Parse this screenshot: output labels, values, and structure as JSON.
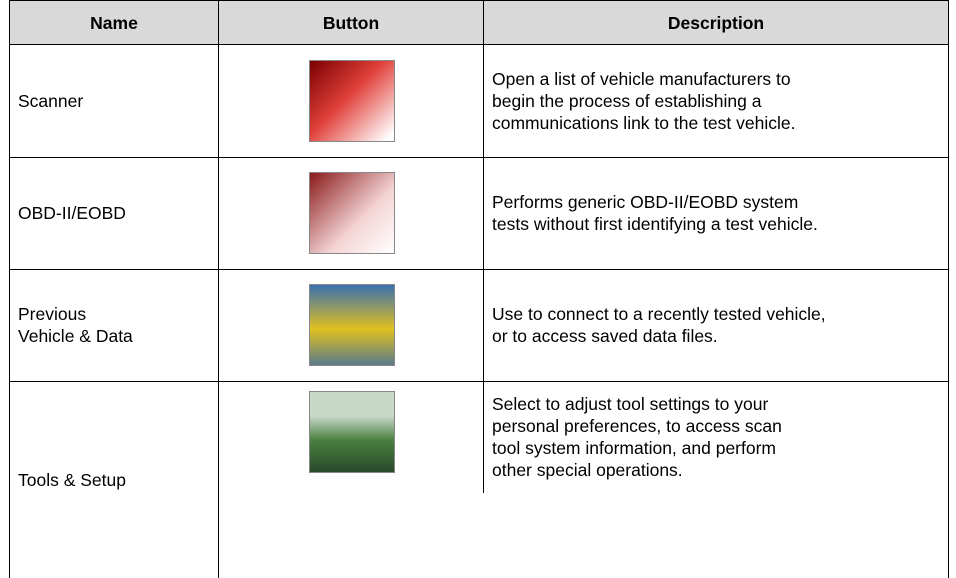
{
  "table": {
    "header": [
      "Name",
      "Button",
      "Description"
    ],
    "rows": [
      {
        "name": [
          "Scanner"
        ],
        "description": [
          "Open a list of vehicle manufacturers to",
          "begin the process of establishing a",
          "communications link to the test vehicle."
        ]
      },
      {
        "name": [
          "OBD-II/EOBD"
        ],
        "description": [
          "Performs generic OBD-II/EOBD system",
          "tests without first identifying a test vehicle."
        ]
      },
      {
        "name": [
          "Previous",
          "Vehicle & Data"
        ],
        "description": [
          "Use to connect to a recently tested vehicle,",
          "or to access saved data files."
        ]
      },
      {
        "name": [
          "Tools & Setup"
        ],
        "description": [
          "Select to adjust tool settings to your",
          "personal preferences, to access scan",
          "tool system information, and perform",
          "other special operations."
        ]
      }
    ]
  }
}
